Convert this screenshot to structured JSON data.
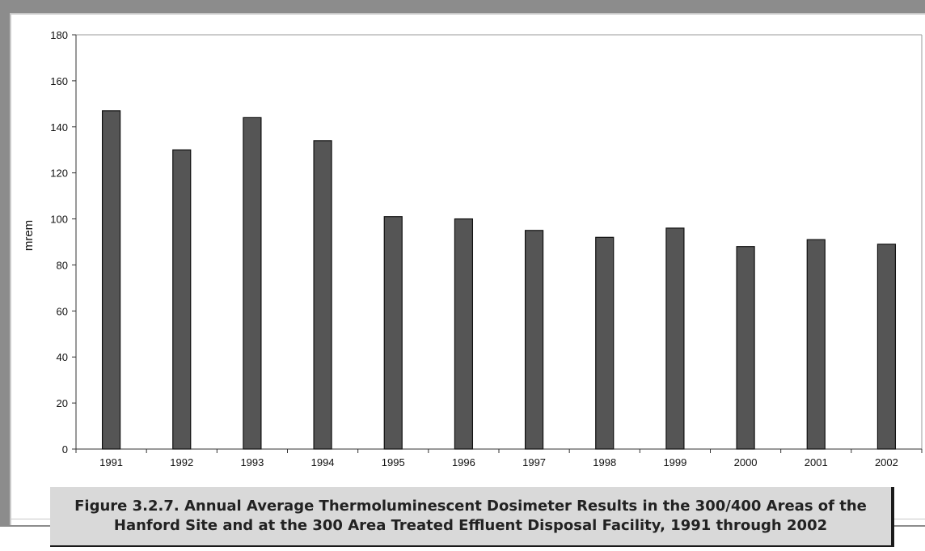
{
  "chart_data": {
    "type": "bar",
    "title": "",
    "xlabel": "",
    "ylabel": "mrem",
    "ylim": [
      0,
      180
    ],
    "yticks": [
      "0",
      "20",
      "40",
      "60",
      "80",
      "100",
      "120",
      "140",
      "160",
      "180"
    ],
    "categories": [
      "1991",
      "1992",
      "1993",
      "1994",
      "1995",
      "1996",
      "1997",
      "1998",
      "1999",
      "2000",
      "2001",
      "2002"
    ],
    "values": [
      147,
      130,
      144,
      134,
      101,
      100,
      95,
      92,
      96,
      88,
      91,
      89
    ],
    "grid": false,
    "legend": "none",
    "bar_color": "#555555"
  },
  "caption": {
    "line1": "Figure 3.2.7.  Annual Average Thermoluminescent Dosimeter Results in the 300/400 Areas of the",
    "line2": "Hanford Site and at the 300 Area Treated Effluent Disposal Facility, 1991 through 2002"
  }
}
